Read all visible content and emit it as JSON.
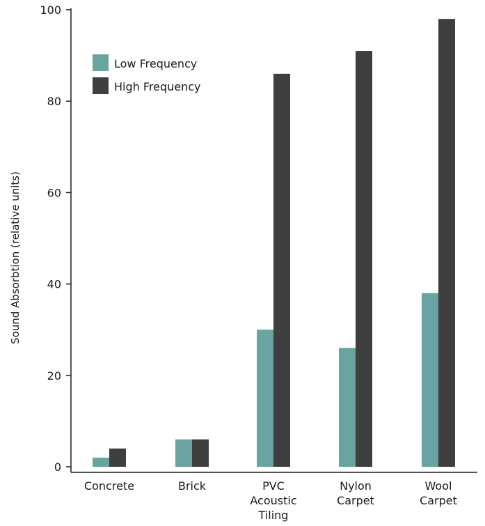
{
  "chart_data": {
    "type": "bar",
    "categories": [
      "Concrete",
      "Brick",
      "PVC Acoustic Tiling",
      "Nylon Carpet",
      "Wool Carpet"
    ],
    "category_label_lines": [
      [
        "Concrete"
      ],
      [
        "Brick"
      ],
      [
        "PVC",
        "Acoustic",
        "Tiling"
      ],
      [
        "Nylon",
        "Carpet"
      ],
      [
        "Wool",
        "Carpet"
      ]
    ],
    "series": [
      {
        "name": "Low Frequency",
        "values": [
          2,
          6,
          30,
          26,
          38
        ]
      },
      {
        "name": "High Frequency",
        "values": [
          4,
          6,
          86,
          91,
          98
        ]
      }
    ],
    "colors": [
      "#6aa3a0",
      "#3f3f3f"
    ],
    "ylabel": "Sound Absorbtion (relative units)",
    "xlabel": "",
    "ylim": [
      0,
      100
    ],
    "yticks": [
      0,
      20,
      40,
      60,
      80,
      100
    ],
    "legend": "top-left",
    "grid": false
  }
}
